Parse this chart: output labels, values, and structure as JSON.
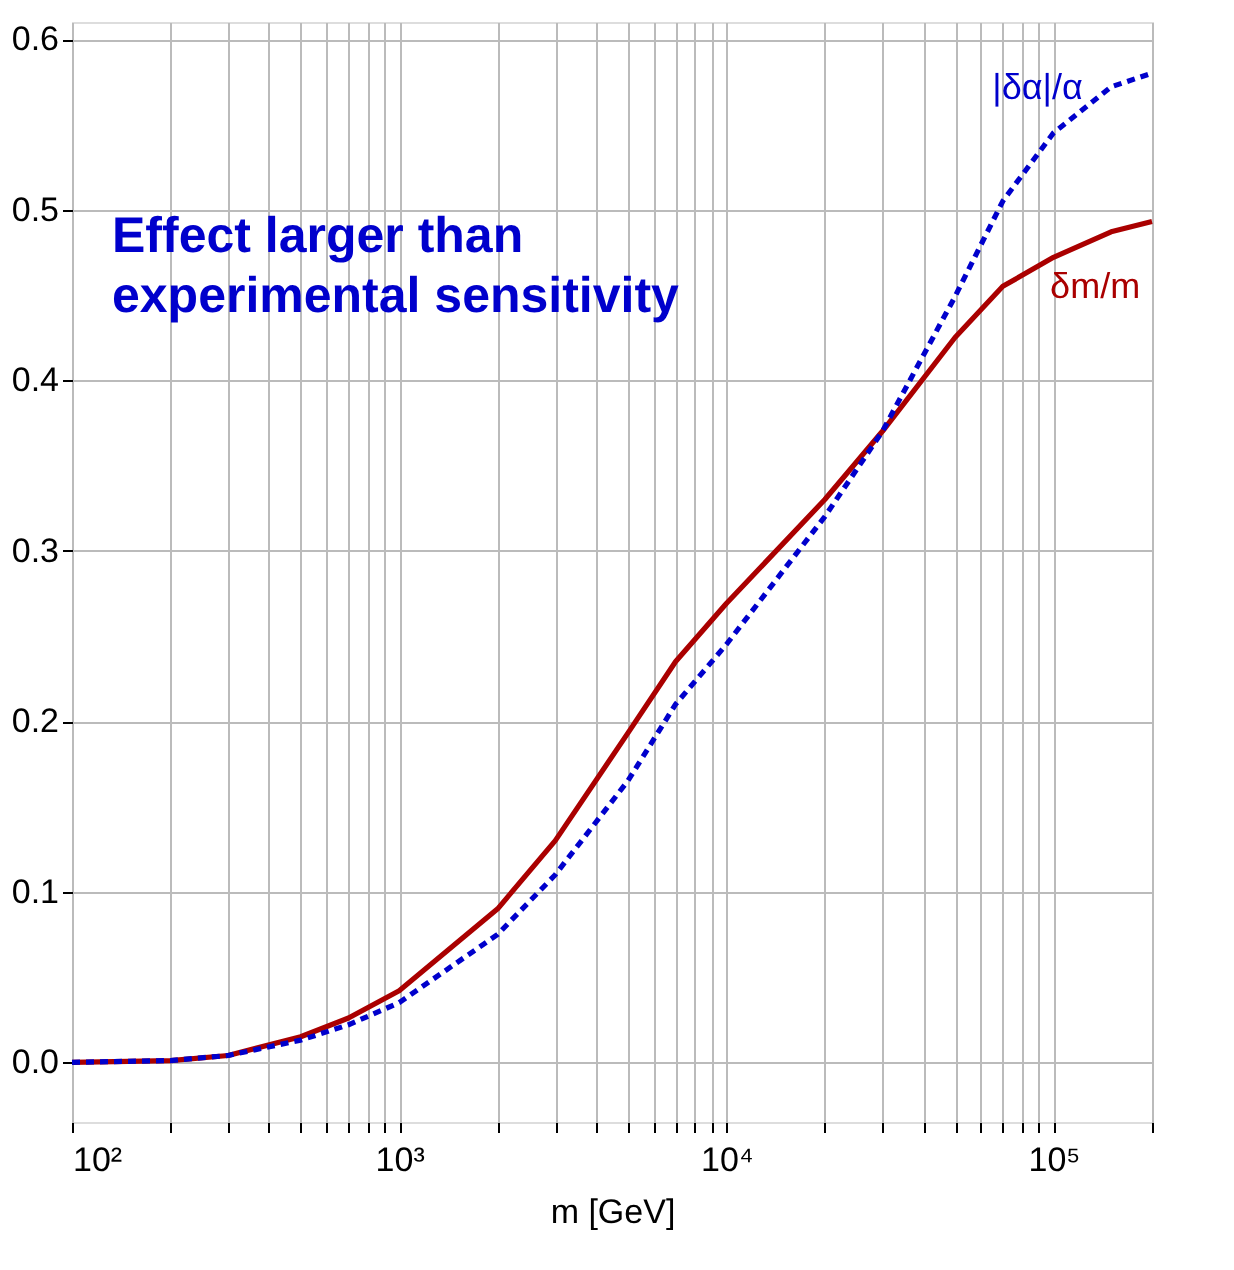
{
  "chart_data": {
    "type": "line",
    "xlabel": "m   [GeV]",
    "x": [
      100,
      200,
      300,
      500,
      700,
      1000,
      2000,
      3000,
      5000,
      7000,
      10000,
      20000,
      30000,
      50000,
      70000,
      100000,
      150000,
      200000
    ],
    "series": [
      {
        "name": "δm/m",
        "color": "#aa0000",
        "line_style": "solid",
        "values": [
          0,
          0.001,
          0.004,
          0.015,
          0.026,
          0.042,
          0.09,
          0.13,
          0.193,
          0.235,
          0.269,
          0.33,
          0.37,
          0.425,
          0.455,
          0.472,
          0.487,
          0.493
        ]
      },
      {
        "name": "|δα|/α",
        "color": "#0000cc",
        "line_style": "dashed",
        "values": [
          0,
          0.001,
          0.004,
          0.013,
          0.022,
          0.035,
          0.075,
          0.11,
          0.165,
          0.21,
          0.245,
          0.32,
          0.37,
          0.449,
          0.505,
          0.545,
          0.572,
          0.58
        ]
      }
    ],
    "annotations": [
      "Effect larger than experimental sensitivity"
    ],
    "log": "x",
    "grid": true,
    "marker": "none",
    "xlim": [
      100,
      200000
    ],
    "ylim": [
      -0.035,
      0.61
    ],
    "xticks": [
      {
        "value": 100,
        "label": "10²"
      },
      {
        "value": 200,
        "label": null
      },
      {
        "value": 300,
        "label": null
      },
      {
        "value": 400,
        "label": null
      },
      {
        "value": 500,
        "label": null
      },
      {
        "value": 600,
        "label": null
      },
      {
        "value": 700,
        "label": null
      },
      {
        "value": 800,
        "label": null
      },
      {
        "value": 900,
        "label": null
      },
      {
        "value": 1000,
        "label": "10³"
      },
      {
        "value": 2000,
        "label": null
      },
      {
        "value": 3000,
        "label": null
      },
      {
        "value": 4000,
        "label": null
      },
      {
        "value": 5000,
        "label": null
      },
      {
        "value": 6000,
        "label": null
      },
      {
        "value": 7000,
        "label": null
      },
      {
        "value": 8000,
        "label": null
      },
      {
        "value": 9000,
        "label": null
      },
      {
        "value": 10000,
        "label": "10⁴"
      },
      {
        "value": 20000,
        "label": null
      },
      {
        "value": 30000,
        "label": null
      },
      {
        "value": 40000,
        "label": null
      },
      {
        "value": 50000,
        "label": null
      },
      {
        "value": 60000,
        "label": null
      },
      {
        "value": 70000,
        "label": null
      },
      {
        "value": 80000,
        "label": null
      },
      {
        "value": 90000,
        "label": null
      },
      {
        "value": 100000,
        "label": "10⁵"
      },
      {
        "value": 200000,
        "label": null
      }
    ],
    "yticks": [
      {
        "value": 0,
        "label": "0.0"
      },
      {
        "value": 0.1,
        "label": "0.1"
      },
      {
        "value": 0.2,
        "label": "0.2"
      },
      {
        "value": 0.3,
        "label": "0.3"
      },
      {
        "value": 0.4,
        "label": "0.4"
      },
      {
        "value": 0.5,
        "label": "0.5"
      },
      {
        "value": 0.6,
        "label": "0.6"
      }
    ]
  }
}
